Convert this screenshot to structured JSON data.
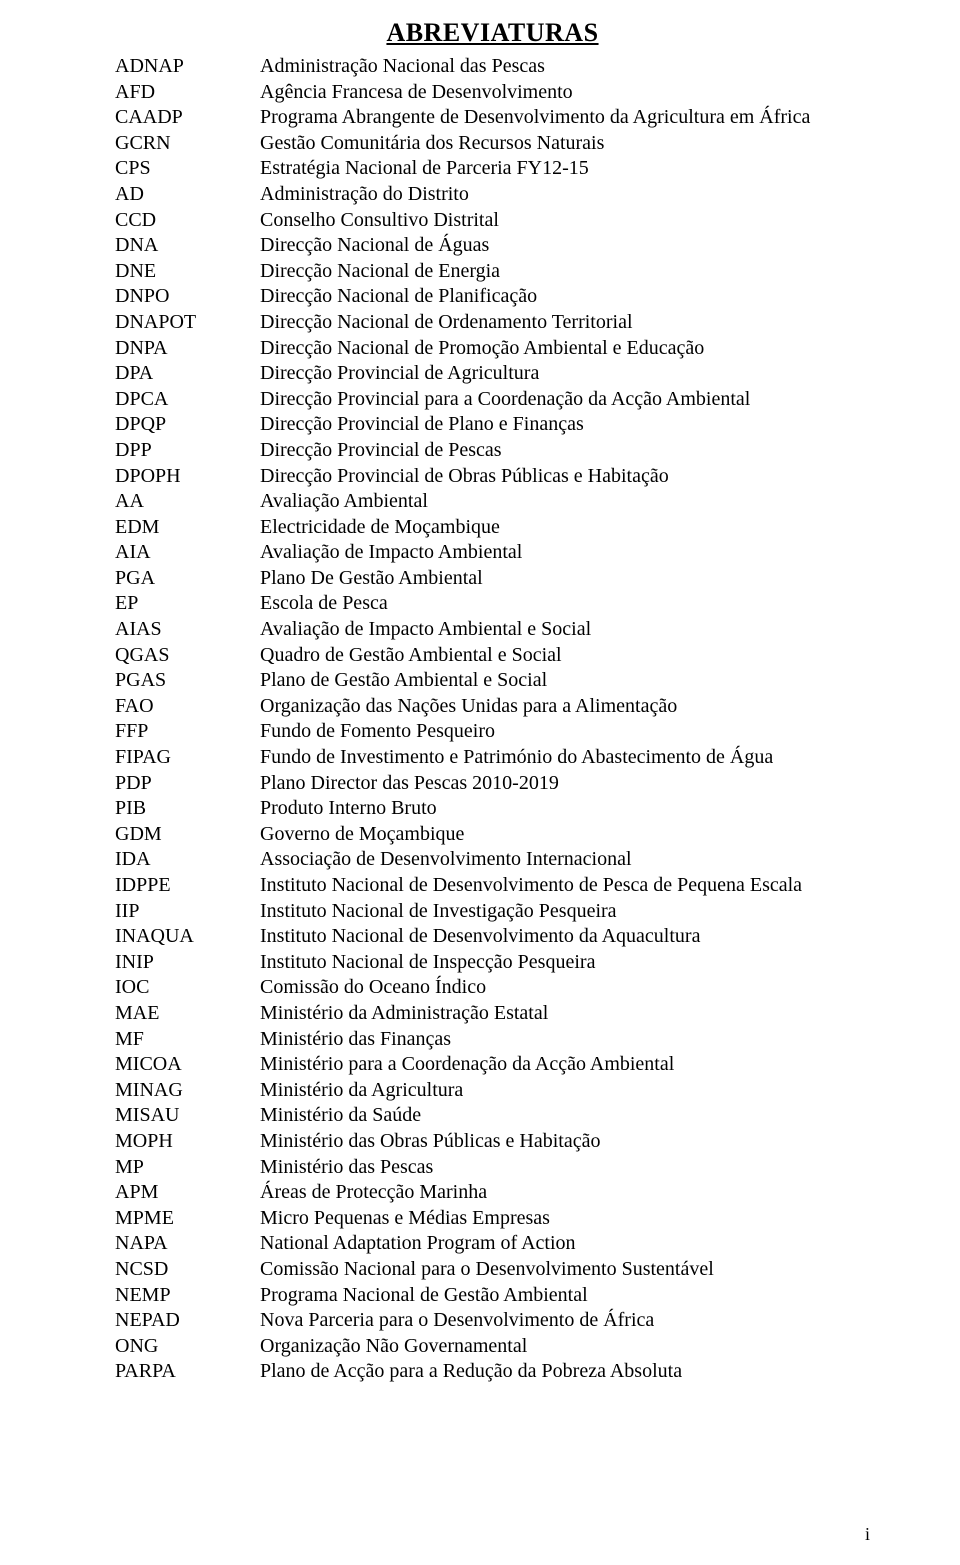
{
  "title": "ABREVIATURAS",
  "page_number": "i",
  "rows": [
    {
      "abbr": "ADNAP",
      "desc": "Administração Nacional das Pescas"
    },
    {
      "abbr": "AFD",
      "desc": "Agência Francesa de Desenvolvimento"
    },
    {
      "abbr": "CAADP",
      "desc": "Programa Abrangente de Desenvolvimento da Agricultura em África"
    },
    {
      "abbr": "GCRN",
      "desc": "Gestão Comunitária dos Recursos Naturais"
    },
    {
      "abbr": "CPS",
      "desc": "Estratégia Nacional de Parceria FY12-15"
    },
    {
      "abbr": "AD",
      "desc": "Administração do Distrito"
    },
    {
      "abbr": "CCD",
      "desc": "Conselho Consultivo Distrital"
    },
    {
      "abbr": "DNA",
      "desc": "Direcção Nacional de Águas"
    },
    {
      "abbr": "DNE",
      "desc": "Direcção Nacional de Energia"
    },
    {
      "abbr": "DNPO",
      "desc": "Direcção Nacional de Planificação"
    },
    {
      "abbr": "DNAPOT",
      "desc": "Direcção Nacional de Ordenamento Territorial"
    },
    {
      "abbr": "DNPA",
      "desc": "Direcção Nacional de Promoção Ambiental e Educação"
    },
    {
      "abbr": "DPA",
      "desc": "Direcção Provincial de Agricultura"
    },
    {
      "abbr": "DPCA",
      "desc": "Direcção Provincial para a Coordenação da Acção Ambiental"
    },
    {
      "abbr": "DPQP",
      "desc": "Direcção Provincial de Plano e Finanças"
    },
    {
      "abbr": "DPP",
      "desc": "Direcção Provincial de Pescas"
    },
    {
      "abbr": "DPOPH",
      "desc": "Direcção Provincial de Obras Públicas e Habitação"
    },
    {
      "abbr": "AA",
      "desc": "Avaliação Ambiental"
    },
    {
      "abbr": "EDM",
      "desc": "Electricidade de Moçambique"
    },
    {
      "abbr": "AIA",
      "desc": "Avaliação de Impacto Ambiental"
    },
    {
      "abbr": "PGA",
      "desc": "Plano De Gestão Ambiental"
    },
    {
      "abbr": "EP",
      "desc": "Escola de Pesca"
    },
    {
      "abbr": "AIAS",
      "desc": "Avaliação de Impacto Ambiental e Social"
    },
    {
      "abbr": "QGAS",
      "desc": "Quadro de Gestão Ambiental e Social"
    },
    {
      "abbr": "PGAS",
      "desc": "Plano de Gestão Ambiental e Social"
    },
    {
      "abbr": "FAO",
      "desc": "Organização das Nações Unidas para a Alimentação"
    },
    {
      "abbr": "FFP",
      "desc": "Fundo de Fomento Pesqueiro"
    },
    {
      "abbr": "FIPAG",
      "desc": "Fundo de Investimento e Património do Abastecimento de Água"
    },
    {
      "abbr": "PDP",
      "desc": "Plano Director das Pescas 2010-2019"
    },
    {
      "abbr": "PIB",
      "desc": "Produto Interno Bruto"
    },
    {
      "abbr": "GDM",
      "desc": "Governo de Moçambique"
    },
    {
      "abbr": "IDA",
      "desc": "Associação de Desenvolvimento Internacional"
    },
    {
      "abbr": "IDPPE",
      "desc": "Instituto Nacional de Desenvolvimento de Pesca de Pequena Escala"
    },
    {
      "abbr": "IIP",
      "desc": "Instituto Nacional de Investigação Pesqueira"
    },
    {
      "abbr": "INAQUA",
      "desc": "Instituto Nacional de Desenvolvimento da Aquacultura"
    },
    {
      "abbr": "INIP",
      "desc": "Instituto Nacional de Inspecção Pesqueira"
    },
    {
      "abbr": "IOC",
      "desc": "Comissão do Oceano Índico"
    },
    {
      "abbr": "MAE",
      "desc": "Ministério da Administração Estatal"
    },
    {
      "abbr": "MF",
      "desc": "Ministério das Finanças"
    },
    {
      "abbr": "MICOA",
      "desc": " Ministério para a Coordenação da Acção Ambiental"
    },
    {
      "abbr": "MINAG",
      "desc": "Ministério da Agricultura"
    },
    {
      "abbr": "MISAU",
      "desc": "Ministério da Saúde"
    },
    {
      "abbr": "MOPH",
      "desc": "Ministério das Obras Públicas e Habitação"
    },
    {
      "abbr": "MP",
      "desc": "Ministério das Pescas"
    },
    {
      "abbr": "APM",
      "desc": "Áreas de Protecção Marinha"
    },
    {
      "abbr": "MPME",
      "desc": "Micro Pequenas e Médias Empresas"
    },
    {
      "abbr": "NAPA",
      "desc": "National Adaptation Program of Action"
    },
    {
      "abbr": "NCSD",
      "desc": "Comissão Nacional para o Desenvolvimento Sustentável"
    },
    {
      "abbr": "NEMP",
      "desc": "Programa Nacional de Gestão Ambiental"
    },
    {
      "abbr": "NEPAD",
      "desc": "Nova Parceria para o Desenvolvimento de África"
    },
    {
      "abbr": "ONG",
      "desc": "Organização Não Governamental"
    },
    {
      "abbr": "PARPA",
      "desc": "Plano de Acção para a Redução da Pobreza Absoluta"
    }
  ]
}
